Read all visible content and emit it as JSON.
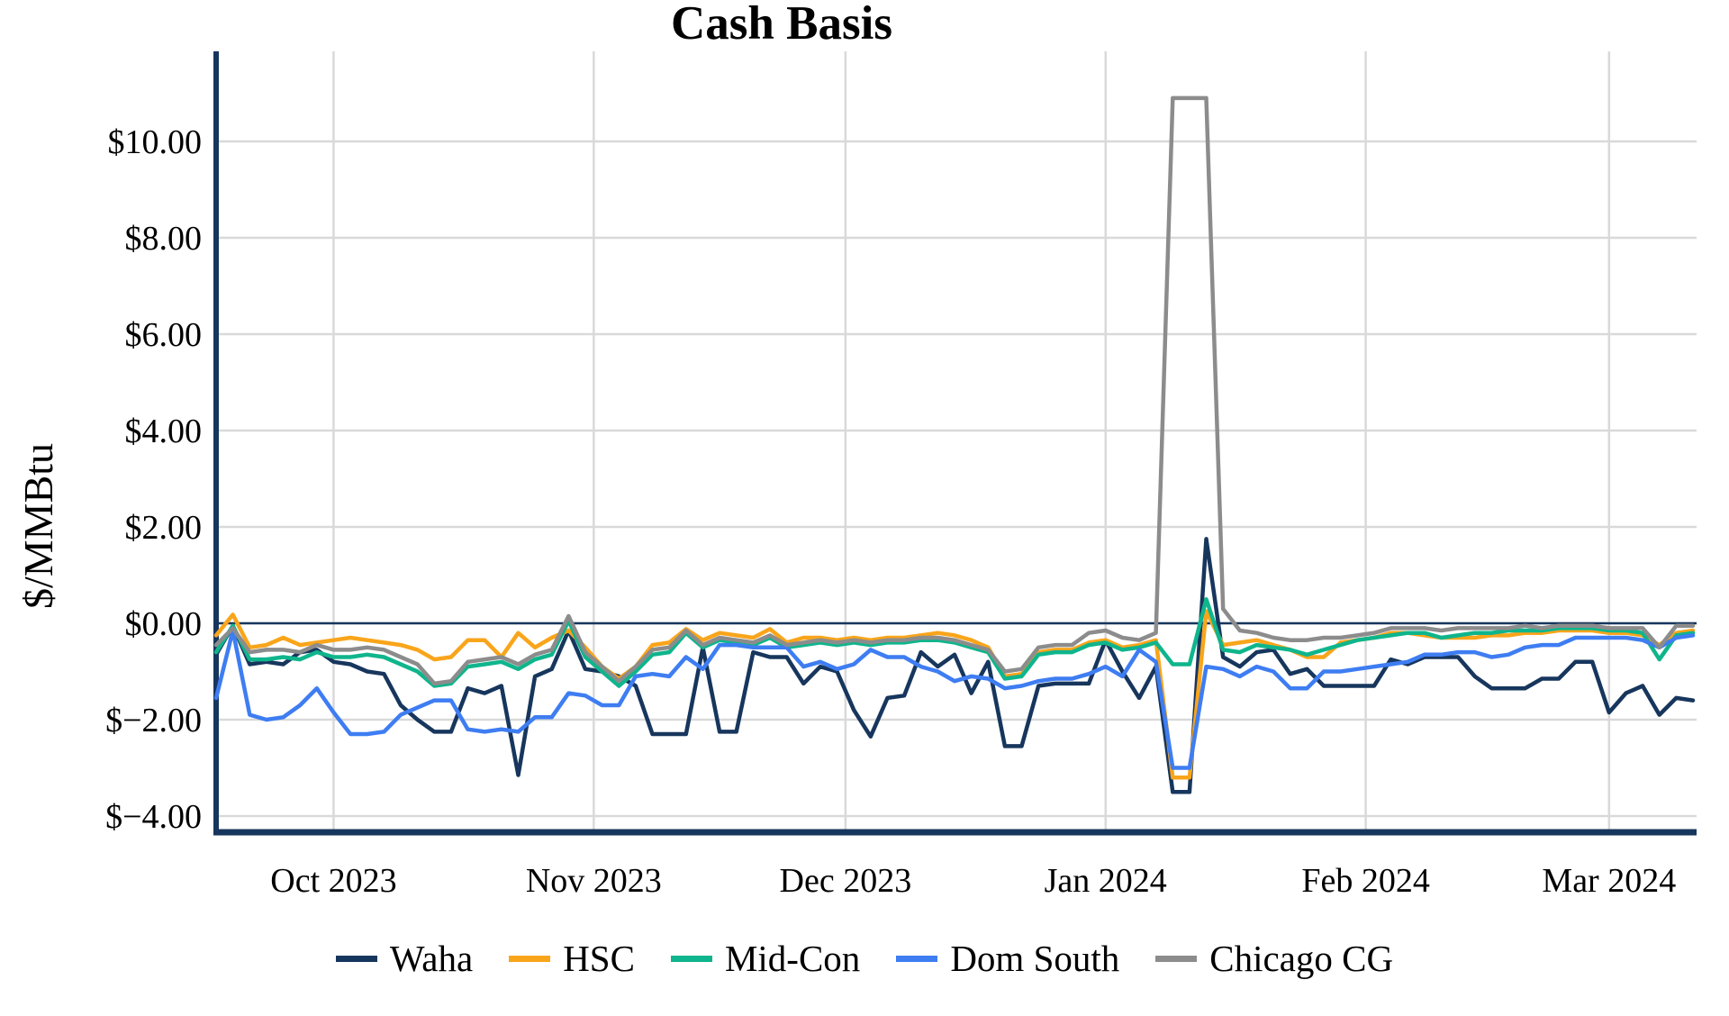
{
  "chart": {
    "title": "Cash Basis",
    "y_axis_label": "$/MMBtu"
  },
  "chart_data": {
    "type": "line",
    "title": "Cash Basis",
    "xlabel": "",
    "ylabel": "$/MMBtu",
    "grid": true,
    "zero_line": true,
    "legend_position": "bottom",
    "colors": {
      "axis": "#17365D",
      "zero_line": "#17365D",
      "gridline": "#D9D9D9",
      "background": "#FFFFFF",
      "text": "#000000"
    },
    "x_ticks": [
      {
        "day": 14,
        "label": "Oct 2023"
      },
      {
        "day": 45,
        "label": "Nov 2023"
      },
      {
        "day": 75,
        "label": "Dec 2023"
      },
      {
        "day": 106,
        "label": "Jan 2024"
      },
      {
        "day": 137,
        "label": "Feb 2024"
      },
      {
        "day": 166,
        "label": "Mar 2024"
      }
    ],
    "y_ticks": [
      {
        "value": 10,
        "label": "$10.00"
      },
      {
        "value": 8,
        "label": "$8.00"
      },
      {
        "value": 6,
        "label": "$6.00"
      },
      {
        "value": 4,
        "label": "$4.00"
      },
      {
        "value": 2,
        "label": "$2.00"
      },
      {
        "value": 0,
        "label": "$0.00"
      },
      {
        "value": -2,
        "label": "$−2.00"
      },
      {
        "value": -4,
        "label": "$−4.00"
      }
    ],
    "xlim_days": [
      0,
      176
    ],
    "ylim": [
      -4.35,
      11.85
    ],
    "x_step_days": 2,
    "x_days": [
      0,
      2,
      4,
      6,
      8,
      10,
      12,
      14,
      16,
      18,
      20,
      22,
      24,
      26,
      28,
      30,
      32,
      34,
      36,
      38,
      40,
      42,
      44,
      46,
      48,
      50,
      52,
      54,
      56,
      58,
      60,
      62,
      64,
      66,
      68,
      70,
      72,
      74,
      76,
      78,
      80,
      82,
      84,
      86,
      88,
      90,
      92,
      94,
      96,
      98,
      100,
      102,
      104,
      106,
      108,
      110,
      112,
      114,
      116,
      118,
      120,
      122,
      124,
      126,
      128,
      130,
      132,
      134,
      136,
      138,
      140,
      142,
      144,
      146,
      148,
      150,
      152,
      154,
      156,
      158,
      160,
      162,
      164,
      166,
      168,
      170,
      172,
      174,
      176
    ],
    "series": [
      {
        "name": "Waha",
        "color": "#17365D",
        "values": [
          -0.65,
          -0.05,
          -0.85,
          -0.8,
          -0.85,
          -0.6,
          -0.55,
          -0.8,
          -0.85,
          -1.0,
          -1.05,
          -1.7,
          -2.0,
          -2.25,
          -2.25,
          -1.35,
          -1.45,
          -1.3,
          -3.15,
          -1.1,
          -0.95,
          -0.15,
          -0.95,
          -1.0,
          -1.1,
          -1.3,
          -2.3,
          -2.3,
          -2.3,
          -0.5,
          -2.25,
          -2.25,
          -0.6,
          -0.7,
          -0.7,
          -1.25,
          -0.9,
          -1.0,
          -1.8,
          -2.35,
          -1.55,
          -1.5,
          -0.6,
          -0.9,
          -0.65,
          -1.45,
          -0.8,
          -2.55,
          -2.55,
          -1.3,
          -1.25,
          -1.25,
          -1.25,
          -0.35,
          -1.0,
          -1.55,
          -0.9,
          -3.5,
          -3.5,
          1.75,
          -0.7,
          -0.9,
          -0.6,
          -0.55,
          -1.05,
          -0.95,
          -1.3,
          -1.3,
          -1.3,
          -1.3,
          -0.75,
          -0.85,
          -0.7,
          -0.7,
          -0.7,
          -1.1,
          -1.35,
          -1.35,
          -1.35,
          -1.15,
          -1.15,
          -0.8,
          -0.8,
          -1.85,
          -1.45,
          -1.3,
          -1.9,
          -1.55,
          -1.6
        ]
      },
      {
        "name": "HSC",
        "color": "#F9A51B",
        "values": [
          -0.25,
          0.18,
          -0.5,
          -0.45,
          -0.3,
          -0.45,
          -0.4,
          -0.35,
          -0.3,
          -0.35,
          -0.4,
          -0.45,
          -0.55,
          -0.75,
          -0.7,
          -0.35,
          -0.35,
          -0.7,
          -0.2,
          -0.5,
          -0.3,
          -0.15,
          -0.5,
          -0.9,
          -1.15,
          -0.9,
          -0.45,
          -0.4,
          -0.12,
          -0.35,
          -0.2,
          -0.25,
          -0.3,
          -0.12,
          -0.4,
          -0.3,
          -0.3,
          -0.35,
          -0.3,
          -0.35,
          -0.3,
          -0.3,
          -0.25,
          -0.2,
          -0.25,
          -0.35,
          -0.5,
          -1.1,
          -1.05,
          -0.6,
          -0.55,
          -0.55,
          -0.4,
          -0.35,
          -0.5,
          -0.45,
          -0.35,
          -3.2,
          -3.2,
          0.25,
          -0.45,
          -0.4,
          -0.35,
          -0.45,
          -0.55,
          -0.7,
          -0.7,
          -0.4,
          -0.35,
          -0.3,
          -0.2,
          -0.2,
          -0.25,
          -0.3,
          -0.3,
          -0.3,
          -0.25,
          -0.25,
          -0.2,
          -0.2,
          -0.15,
          -0.15,
          -0.15,
          -0.2,
          -0.2,
          -0.25,
          -0.45,
          -0.2,
          -0.15
        ]
      },
      {
        "name": "Mid-Con",
        "color": "#0FB58C",
        "values": [
          -0.6,
          -0.05,
          -0.75,
          -0.75,
          -0.7,
          -0.75,
          -0.6,
          -0.7,
          -0.7,
          -0.65,
          -0.7,
          -0.85,
          -1.0,
          -1.3,
          -1.25,
          -0.9,
          -0.85,
          -0.8,
          -0.95,
          -0.75,
          -0.65,
          0.05,
          -0.7,
          -1.0,
          -1.3,
          -1.0,
          -0.65,
          -0.6,
          -0.2,
          -0.5,
          -0.35,
          -0.4,
          -0.45,
          -0.3,
          -0.5,
          -0.45,
          -0.4,
          -0.45,
          -0.4,
          -0.45,
          -0.4,
          -0.4,
          -0.35,
          -0.35,
          -0.4,
          -0.5,
          -0.6,
          -1.15,
          -1.1,
          -0.65,
          -0.6,
          -0.6,
          -0.45,
          -0.4,
          -0.55,
          -0.5,
          -0.4,
          -0.85,
          -0.85,
          0.5,
          -0.55,
          -0.6,
          -0.45,
          -0.5,
          -0.55,
          -0.65,
          -0.55,
          -0.45,
          -0.35,
          -0.3,
          -0.25,
          -0.2,
          -0.2,
          -0.3,
          -0.25,
          -0.2,
          -0.2,
          -0.15,
          -0.15,
          -0.15,
          -0.1,
          -0.1,
          -0.1,
          -0.15,
          -0.15,
          -0.2,
          -0.75,
          -0.25,
          -0.2
        ]
      },
      {
        "name": "Dom South",
        "color": "#3E7DF2",
        "values": [
          -1.55,
          -0.15,
          -1.9,
          -2.0,
          -1.95,
          -1.7,
          -1.35,
          -1.85,
          -2.3,
          -2.3,
          -2.25,
          -1.9,
          -1.75,
          -1.6,
          -1.6,
          -2.2,
          -2.25,
          -2.2,
          -2.25,
          -1.95,
          -1.95,
          -1.45,
          -1.5,
          -1.7,
          -1.7,
          -1.1,
          -1.05,
          -1.1,
          -0.7,
          -0.95,
          -0.45,
          -0.45,
          -0.5,
          -0.5,
          -0.5,
          -0.9,
          -0.8,
          -0.95,
          -0.85,
          -0.55,
          -0.7,
          -0.7,
          -0.9,
          -1.0,
          -1.2,
          -1.1,
          -1.15,
          -1.35,
          -1.3,
          -1.2,
          -1.15,
          -1.15,
          -1.05,
          -0.9,
          -1.1,
          -0.55,
          -0.8,
          -3.0,
          -3.0,
          -0.9,
          -0.95,
          -1.1,
          -0.9,
          -1.0,
          -1.35,
          -1.35,
          -1.0,
          -1.0,
          -0.95,
          -0.9,
          -0.85,
          -0.8,
          -0.65,
          -0.65,
          -0.6,
          -0.6,
          -0.7,
          -0.65,
          -0.5,
          -0.45,
          -0.45,
          -0.3,
          -0.3,
          -0.3,
          -0.3,
          -0.35,
          -0.5,
          -0.3,
          -0.25
        ]
      },
      {
        "name": "Chicago CG",
        "color": "#8C8C8C",
        "values": [
          -0.45,
          -0.1,
          -0.6,
          -0.55,
          -0.55,
          -0.6,
          -0.45,
          -0.55,
          -0.55,
          -0.5,
          -0.55,
          -0.7,
          -0.85,
          -1.25,
          -1.2,
          -0.8,
          -0.75,
          -0.7,
          -0.85,
          -0.65,
          -0.55,
          0.15,
          -0.6,
          -0.9,
          -1.2,
          -0.9,
          -0.55,
          -0.5,
          -0.15,
          -0.45,
          -0.3,
          -0.35,
          -0.4,
          -0.25,
          -0.45,
          -0.4,
          -0.35,
          -0.4,
          -0.35,
          -0.4,
          -0.35,
          -0.35,
          -0.3,
          -0.3,
          -0.35,
          -0.45,
          -0.55,
          -1.0,
          -0.95,
          -0.5,
          -0.45,
          -0.45,
          -0.2,
          -0.15,
          -0.3,
          -0.35,
          -0.2,
          10.9,
          10.9,
          10.9,
          0.3,
          -0.15,
          -0.2,
          -0.3,
          -0.35,
          -0.35,
          -0.3,
          -0.3,
          -0.25,
          -0.2,
          -0.1,
          -0.1,
          -0.1,
          -0.15,
          -0.1,
          -0.1,
          -0.1,
          -0.1,
          -0.05,
          -0.1,
          -0.05,
          -0.05,
          -0.05,
          -0.1,
          -0.1,
          -0.1,
          -0.5,
          -0.05,
          -0.05
        ]
      }
    ],
    "legend": [
      "Waha",
      "HSC",
      "Mid-Con",
      "Dom South",
      "Chicago CG"
    ]
  }
}
